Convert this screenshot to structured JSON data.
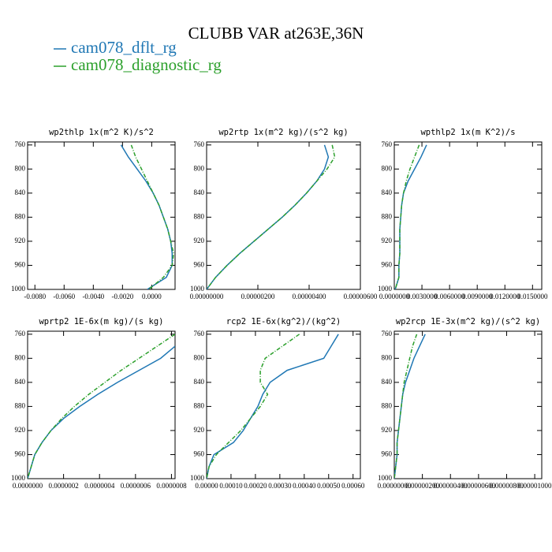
{
  "title": "CLUBB VAR at263E,36N",
  "chart_data": [
    {
      "type": "line",
      "title": "wp2thlp  1x(m^2 K)/s^2",
      "y": [
        760,
        780,
        800,
        820,
        840,
        860,
        880,
        900,
        920,
        940,
        960,
        980,
        1000
      ],
      "series": [
        {
          "name": "cam078_dflt_rg",
          "color": "#1f77b4",
          "values": [
            -0.0021,
            -0.0016,
            -0.001,
            -0.0004,
            0.0001,
            0.0005,
            0.0008,
            0.0011,
            0.0013,
            0.0014,
            0.0014,
            0.001,
            -0.0003
          ]
        },
        {
          "name": "cam078_diagnostic_rg",
          "color": "#2ca02c",
          "values": [
            -0.0014,
            -0.0011,
            -0.0007,
            -0.0003,
            0.0001,
            0.0005,
            0.0008,
            0.0011,
            0.0013,
            0.0015,
            0.0014,
            0.0008,
            -0.0002
          ]
        }
      ],
      "xlim": [
        -0.0085,
        0.0016
      ],
      "xticks": [
        {
          "value": -0.008,
          "label": "-0.0080"
        },
        {
          "value": -0.006,
          "label": "-0.0060"
        },
        {
          "value": -0.004,
          "label": "-0.0040"
        },
        {
          "value": -0.002,
          "label": "-0.0020"
        },
        {
          "value": 0,
          "label": "0.0000"
        }
      ],
      "ylim": [
        1000,
        755
      ],
      "yticks": [
        760,
        800,
        840,
        880,
        920,
        960,
        1000
      ]
    },
    {
      "type": "line",
      "title": "wp2rtp  1x(m^2 kg)/(s^2 kg)",
      "y": [
        760,
        780,
        800,
        820,
        840,
        860,
        880,
        900,
        920,
        940,
        960,
        980,
        1000
      ],
      "series": [
        {
          "name": "cam078_dflt_rg",
          "color": "#1f77b4",
          "values": [
            4.6e-06,
            4.75e-06,
            4.6e-06,
            4.3e-06,
            3.9e-06,
            3.45e-06,
            2.95e-06,
            2.4e-06,
            1.85e-06,
            1.3e-06,
            8e-07,
            3.5e-07,
            0
          ]
        },
        {
          "name": "cam078_diagnostic_rg",
          "color": "#2ca02c",
          "values": [
            4.9e-06,
            5e-06,
            4.7e-06,
            4.3e-06,
            3.9e-06,
            3.45e-06,
            2.95e-06,
            2.4e-06,
            1.85e-06,
            1.3e-06,
            8e-07,
            3.5e-07,
            0
          ]
        }
      ],
      "xlim": [
        0,
        6e-06
      ],
      "xticks": [
        {
          "value": 0,
          "label": "0.00000000"
        },
        {
          "value": 2e-06,
          "label": "0.00000200"
        },
        {
          "value": 4e-06,
          "label": "0.00000400"
        },
        {
          "value": 6e-06,
          "label": "0.00000600"
        }
      ],
      "ylim": [
        1000,
        755
      ],
      "yticks": [
        760,
        800,
        840,
        880,
        920,
        960,
        1000
      ]
    },
    {
      "type": "line",
      "title": "wpthlp2  1x(m K^2)/s",
      "y": [
        760,
        780,
        800,
        820,
        840,
        860,
        880,
        900,
        920,
        940,
        960,
        980,
        1000
      ],
      "series": [
        {
          "name": "cam078_dflt_rg",
          "color": "#1f77b4",
          "values": [
            0.0035,
            0.0029,
            0.0022,
            0.0015,
            0.001,
            0.0008,
            0.0007,
            0.0006,
            0.0006,
            0.0006,
            0.0005,
            0.0005,
            0.0001
          ]
        },
        {
          "name": "cam078_diagnostic_rg",
          "color": "#2ca02c",
          "values": [
            0.0027,
            0.0022,
            0.0017,
            0.0013,
            0.001,
            0.0008,
            0.0007,
            0.0006,
            0.0006,
            0.0006,
            0.0005,
            0.0005,
            0.0001
          ]
        }
      ],
      "xlim": [
        0,
        0.016
      ],
      "xticks": [
        {
          "value": 0,
          "label": "0.0000000"
        },
        {
          "value": 0.003,
          "label": "0.0030000"
        },
        {
          "value": 0.006,
          "label": "0.0060000"
        },
        {
          "value": 0.009,
          "label": "0.0090000"
        },
        {
          "value": 0.012,
          "label": "0.0120000"
        },
        {
          "value": 0.015,
          "label": "0.0150000"
        }
      ],
      "ylim": [
        1000,
        755
      ],
      "yticks": [
        760,
        800,
        840,
        880,
        920,
        960,
        1000
      ]
    },
    {
      "type": "line",
      "title": "wprtp2  1E-6x(m kg)/(s kg)",
      "y": [
        760,
        780,
        800,
        820,
        840,
        860,
        880,
        900,
        920,
        940,
        960,
        980,
        1000
      ],
      "series": [
        {
          "name": "cam078_dflt_rg",
          "color": "#1f77b4",
          "values": [
            null,
            8.2e-07,
            7.4e-07,
            6.2e-07,
            5e-07,
            3.9e-07,
            2.9e-07,
            2e-07,
            1.3e-07,
            8e-08,
            4e-08,
            2e-08,
            0
          ]
        },
        {
          "name": "cam078_diagnostic_rg",
          "color": "#2ca02c",
          "values": [
            8.2e-07,
            7.2e-07,
            6.2e-07,
            5.2e-07,
            4.3e-07,
            3.4e-07,
            2.6e-07,
            1.9e-07,
            1.3e-07,
            8e-08,
            4e-08,
            2e-08,
            0
          ]
        }
      ],
      "xlim": [
        0,
        8.2e-07
      ],
      "xticks": [
        {
          "value": 0,
          "label": "0.0000000"
        },
        {
          "value": 2e-07,
          "label": "0.0000002"
        },
        {
          "value": 4e-07,
          "label": "0.0000004"
        },
        {
          "value": 6e-07,
          "label": "0.0000006"
        },
        {
          "value": 8e-07,
          "label": "0.0000008"
        }
      ],
      "ylim": [
        1000,
        755
      ],
      "yticks": [
        760,
        800,
        840,
        880,
        920,
        960,
        1000
      ]
    },
    {
      "type": "line",
      "title": "rcp2  1E-6x(kg^2)/(kg^2)",
      "y": [
        760,
        780,
        800,
        820,
        840,
        860,
        880,
        900,
        920,
        940,
        960,
        980,
        1000
      ],
      "series": [
        {
          "name": "cam078_dflt_rg",
          "color": "#1f77b4",
          "values": [
            0.00054,
            0.00051,
            0.00048,
            0.00033,
            0.00026,
            0.00023,
            0.00021,
            0.00018,
            0.00015,
            0.00011,
            3e-05,
            1e-05,
            0
          ]
        },
        {
          "name": "cam078_diagnostic_rg",
          "color": "#2ca02c",
          "values": [
            0.00038,
            0.00031,
            0.00024,
            0.00022,
            0.00022,
            0.00025,
            0.00022,
            0.00018,
            0.00014,
            9e-05,
            4e-05,
            1e-05,
            0
          ]
        }
      ],
      "xlim": [
        0,
        0.00063
      ],
      "xticks": [
        {
          "value": 0,
          "label": "0.00000"
        },
        {
          "value": 0.0001,
          "label": "0.00010"
        },
        {
          "value": 0.0002,
          "label": "0.00020"
        },
        {
          "value": 0.0003,
          "label": "0.00030"
        },
        {
          "value": 0.0004,
          "label": "0.00040"
        },
        {
          "value": 0.0005,
          "label": "0.00050"
        },
        {
          "value": 0.0006,
          "label": "0.00060"
        }
      ],
      "ylim": [
        1000,
        755
      ],
      "yticks": [
        760,
        800,
        840,
        880,
        920,
        960,
        1000
      ]
    },
    {
      "type": "line",
      "title": "wp2rcp  1E-3x(m^2 kg)/(s^2 kg)",
      "y": [
        760,
        780,
        800,
        820,
        840,
        860,
        880,
        900,
        920,
        940,
        960,
        980,
        1000
      ],
      "series": [
        {
          "name": "cam078_dflt_rg",
          "color": "#1f77b4",
          "values": [
            2.2e-06,
            1.8e-06,
            1.4e-06,
            1.1e-06,
            8e-07,
            6e-07,
            5e-07,
            4e-07,
            3e-07,
            2e-07,
            2e-07,
            1e-07,
            0
          ]
        },
        {
          "name": "cam078_diagnostic_rg",
          "color": "#2ca02c",
          "values": [
            1.6e-06,
            1.3e-06,
            1.1e-06,
            9e-07,
            7e-07,
            6e-07,
            5e-07,
            4e-07,
            3e-07,
            2e-07,
            2e-07,
            1e-07,
            0
          ]
        }
      ],
      "xlim": [
        0,
        1.05e-05
      ],
      "xticks": [
        {
          "value": 0,
          "label": "0.00000000"
        },
        {
          "value": 2e-06,
          "label": "0.00000200"
        },
        {
          "value": 4e-06,
          "label": "0.00000400"
        },
        {
          "value": 6e-06,
          "label": "0.00000600"
        },
        {
          "value": 8e-06,
          "label": "0.00000800"
        },
        {
          "value": 1e-05,
          "label": "0.00001000"
        }
      ],
      "ylim": [
        1000,
        755
      ],
      "yticks": [
        760,
        800,
        840,
        880,
        920,
        960,
        1000
      ]
    }
  ]
}
